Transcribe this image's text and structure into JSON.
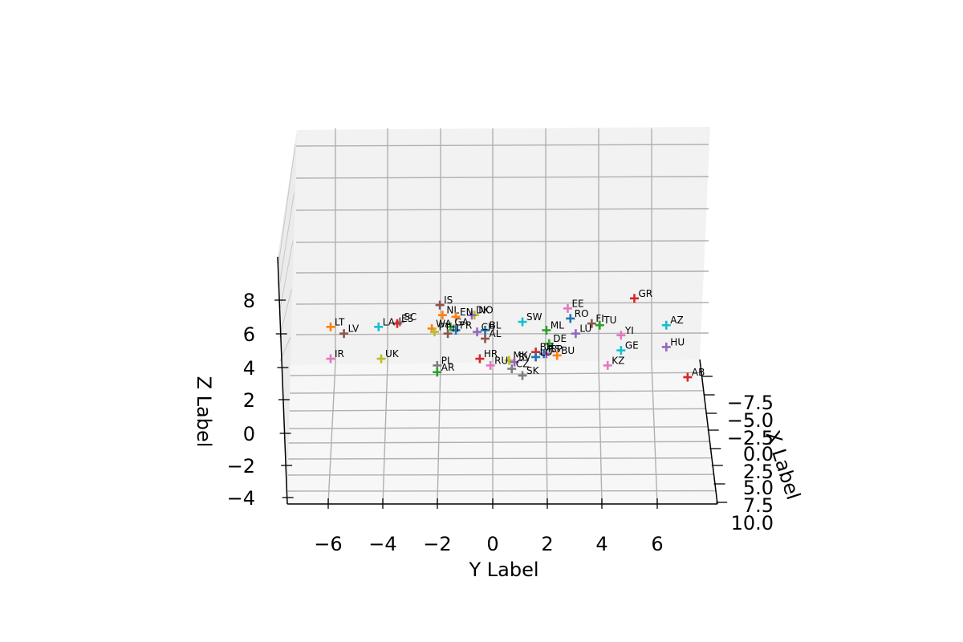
{
  "chart_data": {
    "type": "scatter",
    "projection": "3d",
    "marker": "plus",
    "xlabel": "X Label",
    "ylabel": "Y Label",
    "zlabel": "Z Label",
    "grid": true,
    "yticks": [
      "−6",
      "−4",
      "−2",
      "0",
      "2",
      "4",
      "6"
    ],
    "zticks": [
      "−4",
      "−2",
      "0",
      "2",
      "4",
      "6",
      "8"
    ],
    "xticks": [
      "−7.5",
      "−5.0",
      "−2.5",
      "0.0",
      "2.5",
      "5.0",
      "7.5",
      "10.0"
    ],
    "points": [
      {
        "label": "GR",
        "y": 5.3,
        "z": 8.0,
        "color": "#d62728"
      },
      {
        "label": "IS",
        "y": -2.0,
        "z": 7.6,
        "color": "#8c564b"
      },
      {
        "label": "EE",
        "y": 2.8,
        "z": 7.4,
        "color": "#e377c2"
      },
      {
        "label": "NO",
        "y": -0.7,
        "z": 7.0,
        "color": "#bcbd22"
      },
      {
        "label": "DK",
        "y": -0.8,
        "z": 7.0,
        "color": "#9467bd"
      },
      {
        "label": "NL",
        "y": -1.9,
        "z": 7.0,
        "color": "#ff7f0e"
      },
      {
        "label": "EN",
        "y": -1.4,
        "z": 6.9,
        "color": "#ff7f0e"
      },
      {
        "label": "RO",
        "y": 2.9,
        "z": 6.8,
        "color": "#1f77b4"
      },
      {
        "label": "SW",
        "y": 1.1,
        "z": 6.6,
        "color": "#17becf"
      },
      {
        "label": "SC",
        "y": -3.5,
        "z": 6.6,
        "color": "#7f7f7f"
      },
      {
        "label": "ES",
        "y": -3.6,
        "z": 6.5,
        "color": "#d62728"
      },
      {
        "label": "FI",
        "y": 3.7,
        "z": 6.5,
        "color": "#8c564b"
      },
      {
        "label": "AZ",
        "y": 6.5,
        "z": 6.4,
        "color": "#17becf"
      },
      {
        "label": "TU",
        "y": 4.0,
        "z": 6.4,
        "color": "#2ca02c"
      },
      {
        "label": "LT",
        "y": -6.1,
        "z": 6.3,
        "color": "#ff7f0e"
      },
      {
        "label": "LA",
        "y": -4.3,
        "z": 6.3,
        "color": "#17becf"
      },
      {
        "label": "GA",
        "y": -1.6,
        "z": 6.3,
        "color": "#2ca02c"
      },
      {
        "label": "WA",
        "y": -2.3,
        "z": 6.2,
        "color": "#ff7f0e"
      },
      {
        "label": "FR",
        "y": -1.4,
        "z": 6.1,
        "color": "#1f77b4"
      },
      {
        "label": "BL",
        "y": -0.3,
        "z": 6.1,
        "color": "#1f77b4"
      },
      {
        "label": "ML",
        "y": 2.0,
        "z": 6.1,
        "color": "#2ca02c"
      },
      {
        "label": "PT",
        "y": -2.2,
        "z": 6.0,
        "color": "#bcbd22"
      },
      {
        "label": "IT",
        "y": -1.7,
        "z": 5.9,
        "color": "#8c564b"
      },
      {
        "label": "CH",
        "y": -0.6,
        "z": 6.0,
        "color": "#9467bd"
      },
      {
        "label": "LU",
        "y": 3.1,
        "z": 5.9,
        "color": "#9467bd"
      },
      {
        "label": "LV",
        "y": -5.6,
        "z": 5.9,
        "color": "#8c564b"
      },
      {
        "label": "YI",
        "y": 4.8,
        "z": 5.8,
        "color": "#e377c2"
      },
      {
        "label": "AL",
        "y": -0.3,
        "z": 5.6,
        "color": "#8c564b"
      },
      {
        "label": "DE",
        "y": 2.1,
        "z": 5.3,
        "color": "#2ca02c"
      },
      {
        "label": "HU",
        "y": 6.5,
        "z": 5.1,
        "color": "#9467bd"
      },
      {
        "label": "GE",
        "y": 4.8,
        "z": 4.9,
        "color": "#17becf"
      },
      {
        "label": "BH",
        "y": 1.6,
        "z": 4.8,
        "color": "#d62728"
      },
      {
        "label": "RS",
        "y": 1.9,
        "z": 4.7,
        "color": "#1f77b4"
      },
      {
        "label": "SP",
        "y": 2.0,
        "z": 4.7,
        "color": "#9467bd"
      },
      {
        "label": "BU",
        "y": 2.4,
        "z": 4.6,
        "color": "#ff7f0e"
      },
      {
        "label": "LO",
        "y": 1.6,
        "z": 4.5,
        "color": "#1f77b4"
      },
      {
        "label": "HR",
        "y": -0.5,
        "z": 4.4,
        "color": "#d62728"
      },
      {
        "label": "IR",
        "y": -6.1,
        "z": 4.4,
        "color": "#e377c2"
      },
      {
        "label": "UK",
        "y": -4.2,
        "z": 4.4,
        "color": "#bcbd22"
      },
      {
        "label": "MK",
        "y": 0.6,
        "z": 4.3,
        "color": "#bcbd22"
      },
      {
        "label": "SV",
        "y": 0.8,
        "z": 4.2,
        "color": "#9467bd"
      },
      {
        "label": "KZ",
        "y": 4.3,
        "z": 4.0,
        "color": "#e377c2"
      },
      {
        "label": "RU",
        "y": -0.1,
        "z": 4.0,
        "color": "#e377c2"
      },
      {
        "label": "PL",
        "y": -2.1,
        "z": 4.0,
        "color": "#7f7f7f"
      },
      {
        "label": "CZ",
        "y": 0.7,
        "z": 3.8,
        "color": "#7f7f7f"
      },
      {
        "label": "AR",
        "y": -2.1,
        "z": 3.6,
        "color": "#2ca02c"
      },
      {
        "label": "SK",
        "y": 1.1,
        "z": 3.4,
        "color": "#7f7f7f"
      },
      {
        "label": "AB",
        "y": 7.3,
        "z": 3.3,
        "color": "#d62728"
      }
    ]
  }
}
